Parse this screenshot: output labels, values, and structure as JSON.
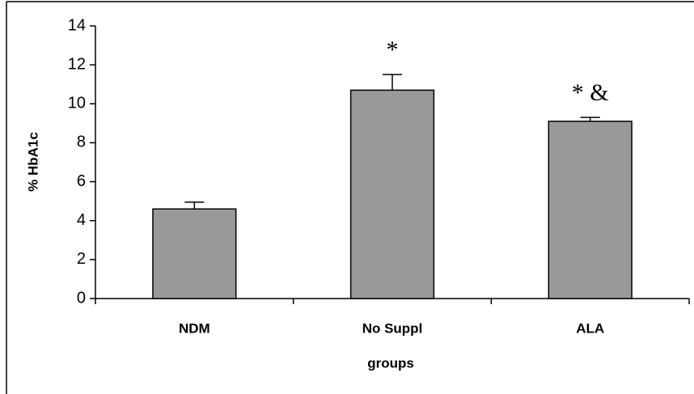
{
  "chart_data": {
    "type": "bar",
    "categories": [
      "NDM",
      "No Suppl",
      "ALA"
    ],
    "values": [
      4.6,
      10.7,
      9.1
    ],
    "errors": [
      0.35,
      0.8,
      0.2
    ],
    "color": "#999999",
    "ylabel": "% HbA1c",
    "xlabel": "groups",
    "annotations": [
      "*",
      "* &"
    ],
    "ylim": [
      0,
      14
    ],
    "yticks": [
      0,
      2,
      4,
      6,
      8,
      10,
      12,
      14
    ]
  }
}
